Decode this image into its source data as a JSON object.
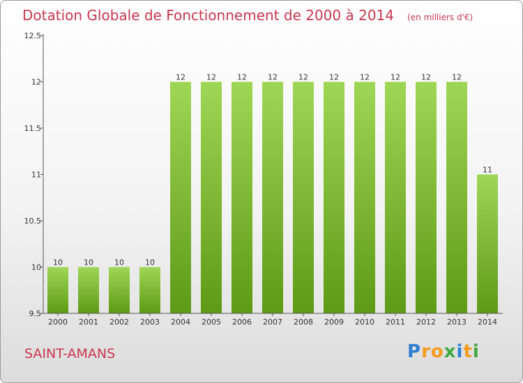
{
  "header": {
    "title": "Dotation Globale de Fonctionnement de 2000 à 2014",
    "subtitle": "(en milliers d'€)"
  },
  "footer": {
    "commune": "SAINT-AMANS",
    "brand": "Proxiti"
  },
  "colors": {
    "accent": "#c9364f",
    "bar_light": "#9fd655",
    "bar_dark": "#5e9a16"
  },
  "chart_data": {
    "type": "bar",
    "title": "Dotation Globale de Fonctionnement de 2000 à 2014",
    "subtitle": "(en milliers d'€)",
    "categories": [
      "2000",
      "2001",
      "2002",
      "2003",
      "2004",
      "2005",
      "2006",
      "2007",
      "2008",
      "2009",
      "2010",
      "2011",
      "2012",
      "2013",
      "2014"
    ],
    "values": [
      10,
      10,
      10,
      10,
      12,
      12,
      12,
      12,
      12,
      12,
      12,
      12,
      12,
      12,
      11
    ],
    "data_labels": [
      "10",
      "10",
      "10",
      "10",
      "12",
      "12",
      "12",
      "12",
      "12",
      "12",
      "12",
      "12",
      "12",
      "12",
      "11"
    ],
    "y_ticks": [
      "9.5",
      "10",
      "10.5",
      "11",
      "11.5",
      "12",
      "12.5"
    ],
    "ylim": [
      9.5,
      12.5
    ],
    "grid": false,
    "legend": "none"
  }
}
